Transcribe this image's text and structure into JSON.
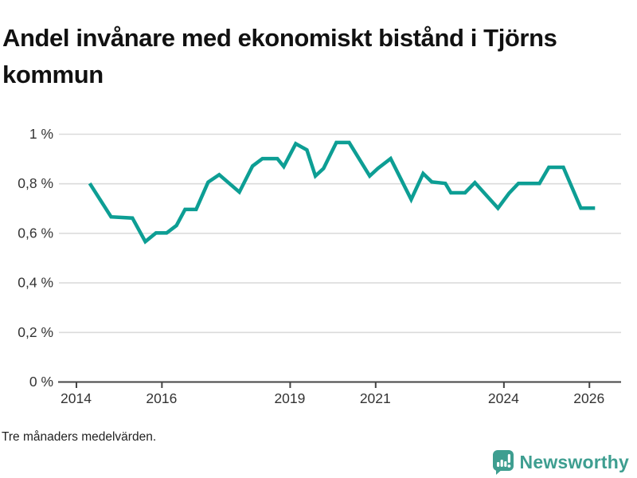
{
  "title": "Andel invånare med ekonomiskt bistånd i Tjörns kommun",
  "footnote": "Tre månaders medelvärden.",
  "brand": {
    "name": "Newsworthy",
    "icon": "newsworthy-speech-bubble-bar-chart-icon",
    "color": "#3E9E90"
  },
  "colors": {
    "line": "#0D9E94",
    "grid": "#DBDBDB",
    "axis": "#444444",
    "tick_text": "#333333"
  },
  "chart_data": {
    "type": "line",
    "title": "Andel invånare med ekonomiskt bistånd i Tjörns kommun",
    "subtitle": "Tre månaders medelvärden.",
    "xlabel": "",
    "ylabel": "",
    "unit": "%",
    "xlim": [
      2013.6,
      2026.75
    ],
    "ylim": [
      0,
      1
    ],
    "grid": "horizontal",
    "legend": "none",
    "y_ticks": [
      {
        "v": 0,
        "label": "0 %"
      },
      {
        "v": 0.2,
        "label": "0,2 %"
      },
      {
        "v": 0.4,
        "label": "0,4 %"
      },
      {
        "v": 0.6,
        "label": "0,6 %"
      },
      {
        "v": 0.8,
        "label": "0,8 %"
      },
      {
        "v": 1,
        "label": "1 %"
      }
    ],
    "x_ticks": [
      {
        "v": 2014,
        "label": "2014"
      },
      {
        "v": 2016,
        "label": "2016"
      },
      {
        "v": 2019,
        "label": "2019"
      },
      {
        "v": 2021,
        "label": "2021"
      },
      {
        "v": 2024,
        "label": "2024"
      },
      {
        "v": 2026,
        "label": "2026"
      }
    ],
    "series": [
      {
        "name": "Andel invånare med ekonomiskt bistånd, Tjörns kommun",
        "color": "#0D9E94",
        "points": [
          [
            2014.32,
            0.8
          ],
          [
            2014.82,
            0.665
          ],
          [
            2015.32,
            0.66
          ],
          [
            2015.62,
            0.565
          ],
          [
            2015.87,
            0.6
          ],
          [
            2016.12,
            0.6
          ],
          [
            2016.35,
            0.63
          ],
          [
            2016.55,
            0.695
          ],
          [
            2016.81,
            0.695
          ],
          [
            2017.09,
            0.805
          ],
          [
            2017.35,
            0.835
          ],
          [
            2017.82,
            0.765
          ],
          [
            2018.13,
            0.87
          ],
          [
            2018.36,
            0.9
          ],
          [
            2018.71,
            0.9
          ],
          [
            2018.86,
            0.868
          ],
          [
            2019.14,
            0.96
          ],
          [
            2019.4,
            0.935
          ],
          [
            2019.6,
            0.83
          ],
          [
            2019.79,
            0.86
          ],
          [
            2020.09,
            0.965
          ],
          [
            2020.39,
            0.965
          ],
          [
            2020.87,
            0.83
          ],
          [
            2021.06,
            0.86
          ],
          [
            2021.36,
            0.9
          ],
          [
            2021.84,
            0.735
          ],
          [
            2022.12,
            0.84
          ],
          [
            2022.32,
            0.806
          ],
          [
            2022.64,
            0.8
          ],
          [
            2022.77,
            0.762
          ],
          [
            2023.1,
            0.762
          ],
          [
            2023.33,
            0.803
          ],
          [
            2023.87,
            0.7
          ],
          [
            2024.13,
            0.76
          ],
          [
            2024.35,
            0.8
          ],
          [
            2024.84,
            0.8
          ],
          [
            2025.06,
            0.865
          ],
          [
            2025.4,
            0.865
          ],
          [
            2025.81,
            0.7
          ],
          [
            2026.14,
            0.7
          ]
        ]
      }
    ]
  }
}
